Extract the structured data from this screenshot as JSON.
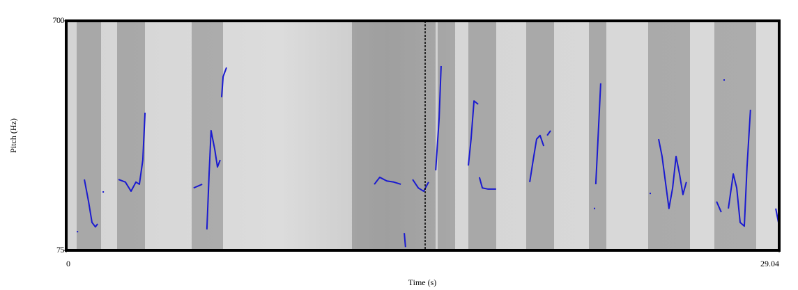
{
  "chart_data": {
    "type": "line",
    "x_label": "Time (s)",
    "y_label": "Pitch (Hz)",
    "xlim": [
      0,
      29.04
    ],
    "ylim": [
      75,
      700
    ],
    "xticks": [
      0,
      29.04
    ],
    "yticks": [
      75,
      700
    ],
    "cursor": 14.62,
    "x": [
      0.43,
      null,
      0.74,
      0.91,
      1.05,
      1.19,
      1.28,
      null,
      1.48,
      null,
      2.13,
      2.41,
      2.64,
      2.84,
      2.98,
      3.12,
      3.21,
      null,
      5.19,
      5.54,
      null,
      5.73,
      5.82,
      5.9,
      6.05,
      6.16,
      6.27,
      null,
      6.33,
      6.39,
      6.53,
      null,
      12.55,
      12.77,
      13.06,
      13.34,
      13.63,
      null,
      13.77,
      13.82,
      null,
      14.11,
      14.34,
      14.56,
      14.76,
      null,
      15.05,
      15.19,
      15.27,
      null,
      16.38,
      16.49,
      16.61,
      16.78,
      null,
      16.83,
      16.95,
      17.17,
      17.51,
      null,
      18.88,
      19.02,
      19.16,
      19.3,
      19.45,
      null,
      19.59,
      19.73,
      null,
      21.49,
      null,
      21.57,
      21.66,
      21.77,
      null,
      23.76,
      null,
      24.13,
      24.27,
      24.55,
      24.7,
      24.84,
      24.98,
      25.12,
      25.26,
      null,
      26.49,
      26.68,
      null,
      26.77,
      null,
      26.97,
      27.17,
      27.31,
      27.45,
      27.62,
      27.73,
      27.87,
      null,
      28.9,
      29.04
    ],
    "series": [
      {
        "color": "#1a1ad0",
        "values": [
          126,
          null,
          268,
          208,
          151,
          139,
          147,
          null,
          234,
          null,
          268,
          261,
          236,
          261,
          255,
          321,
          450,
          null,
          245,
          255,
          null,
          132,
          283,
          401,
          350,
          302,
          321,
          null,
          492,
          548,
          573,
          null,
          255,
          274,
          264,
          261,
          255,
          null,
          122,
          84,
          null,
          268,
          245,
          236,
          261,
          null,
          293,
          435,
          577,
          null,
          306,
          378,
          482,
          473,
          null,
          274,
          245,
          242,
          242,
          null,
          261,
          321,
          378,
          388,
          359,
          null,
          388,
          401,
          null,
          189,
          null,
          255,
          378,
          530,
          null,
          230,
          null,
          378,
          331,
          189,
          245,
          331,
          283,
          227,
          261,
          null,
          208,
          179,
          null,
          539,
          null,
          189,
          283,
          245,
          151,
          141,
          302,
          458,
          null,
          189,
          141
        ]
      }
    ]
  }
}
